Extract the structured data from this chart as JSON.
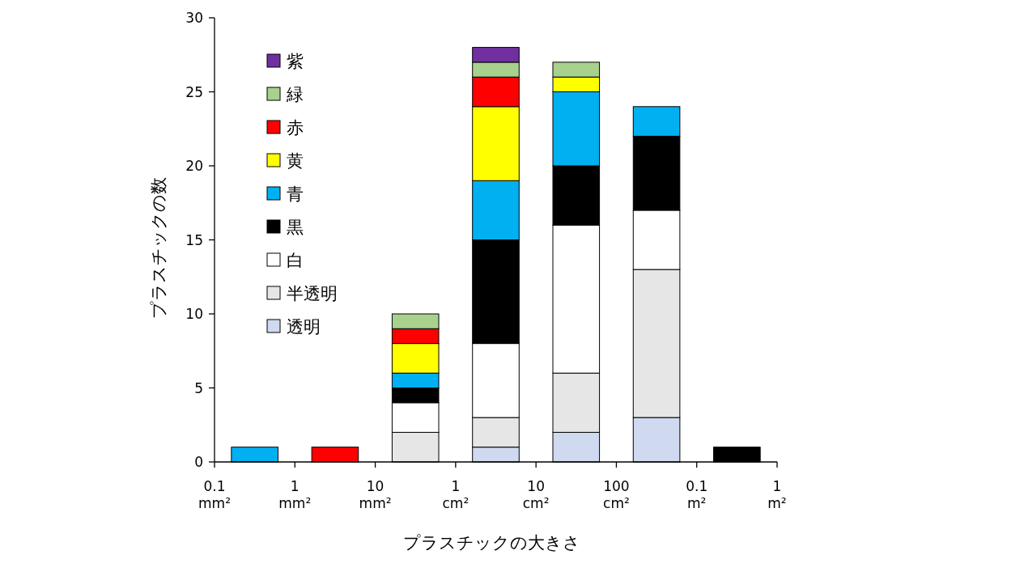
{
  "chart_data": {
    "type": "bar",
    "stacked": true,
    "xlabel": "プラスチックの大きさ",
    "ylabel": "プラスチックの数",
    "categories": [
      null,
      null,
      null,
      null,
      null,
      null,
      null
    ],
    "annotations": [
      "0.1 mm²",
      "1 mm²",
      "10 mm²",
      "1 cm²",
      "10 cm²",
      "100 cm²",
      "0.1 m²",
      "1 m²"
    ],
    "ylim": [
      0,
      30
    ],
    "yticks": [
      0,
      5,
      10,
      15,
      20,
      25,
      30
    ],
    "legend": "top left",
    "series": [
      {
        "name": "透明",
        "color": "#cfdaf0",
        "values": [
          0,
          0,
          0,
          1,
          2,
          3,
          0
        ]
      },
      {
        "name": "半透明",
        "color": "#e7e6e6",
        "values": [
          0,
          0,
          2,
          2,
          4,
          10,
          0
        ]
      },
      {
        "name": "白",
        "color": "#ffffff",
        "values": [
          0,
          0,
          2,
          5,
          10,
          4,
          0
        ]
      },
      {
        "name": "黒",
        "color": "#000000",
        "values": [
          0,
          0,
          1,
          7,
          4,
          5,
          1
        ]
      },
      {
        "name": "青",
        "color": "#00b0f0",
        "values": [
          1,
          0,
          1,
          4,
          5,
          2,
          0
        ]
      },
      {
        "name": "黄",
        "color": "#ffff00",
        "values": [
          0,
          0,
          2,
          5,
          1,
          0,
          0
        ]
      },
      {
        "name": "赤",
        "color": "#ff0000",
        "values": [
          0,
          1,
          1,
          2,
          0,
          0,
          0
        ]
      },
      {
        "name": "緑",
        "color": "#a9d18e",
        "values": [
          0,
          0,
          1,
          1,
          1,
          0,
          0
        ]
      },
      {
        "name": "紫",
        "color": "#7030a0",
        "values": [
          0,
          0,
          0,
          1,
          0,
          0,
          0
        ]
      }
    ]
  }
}
